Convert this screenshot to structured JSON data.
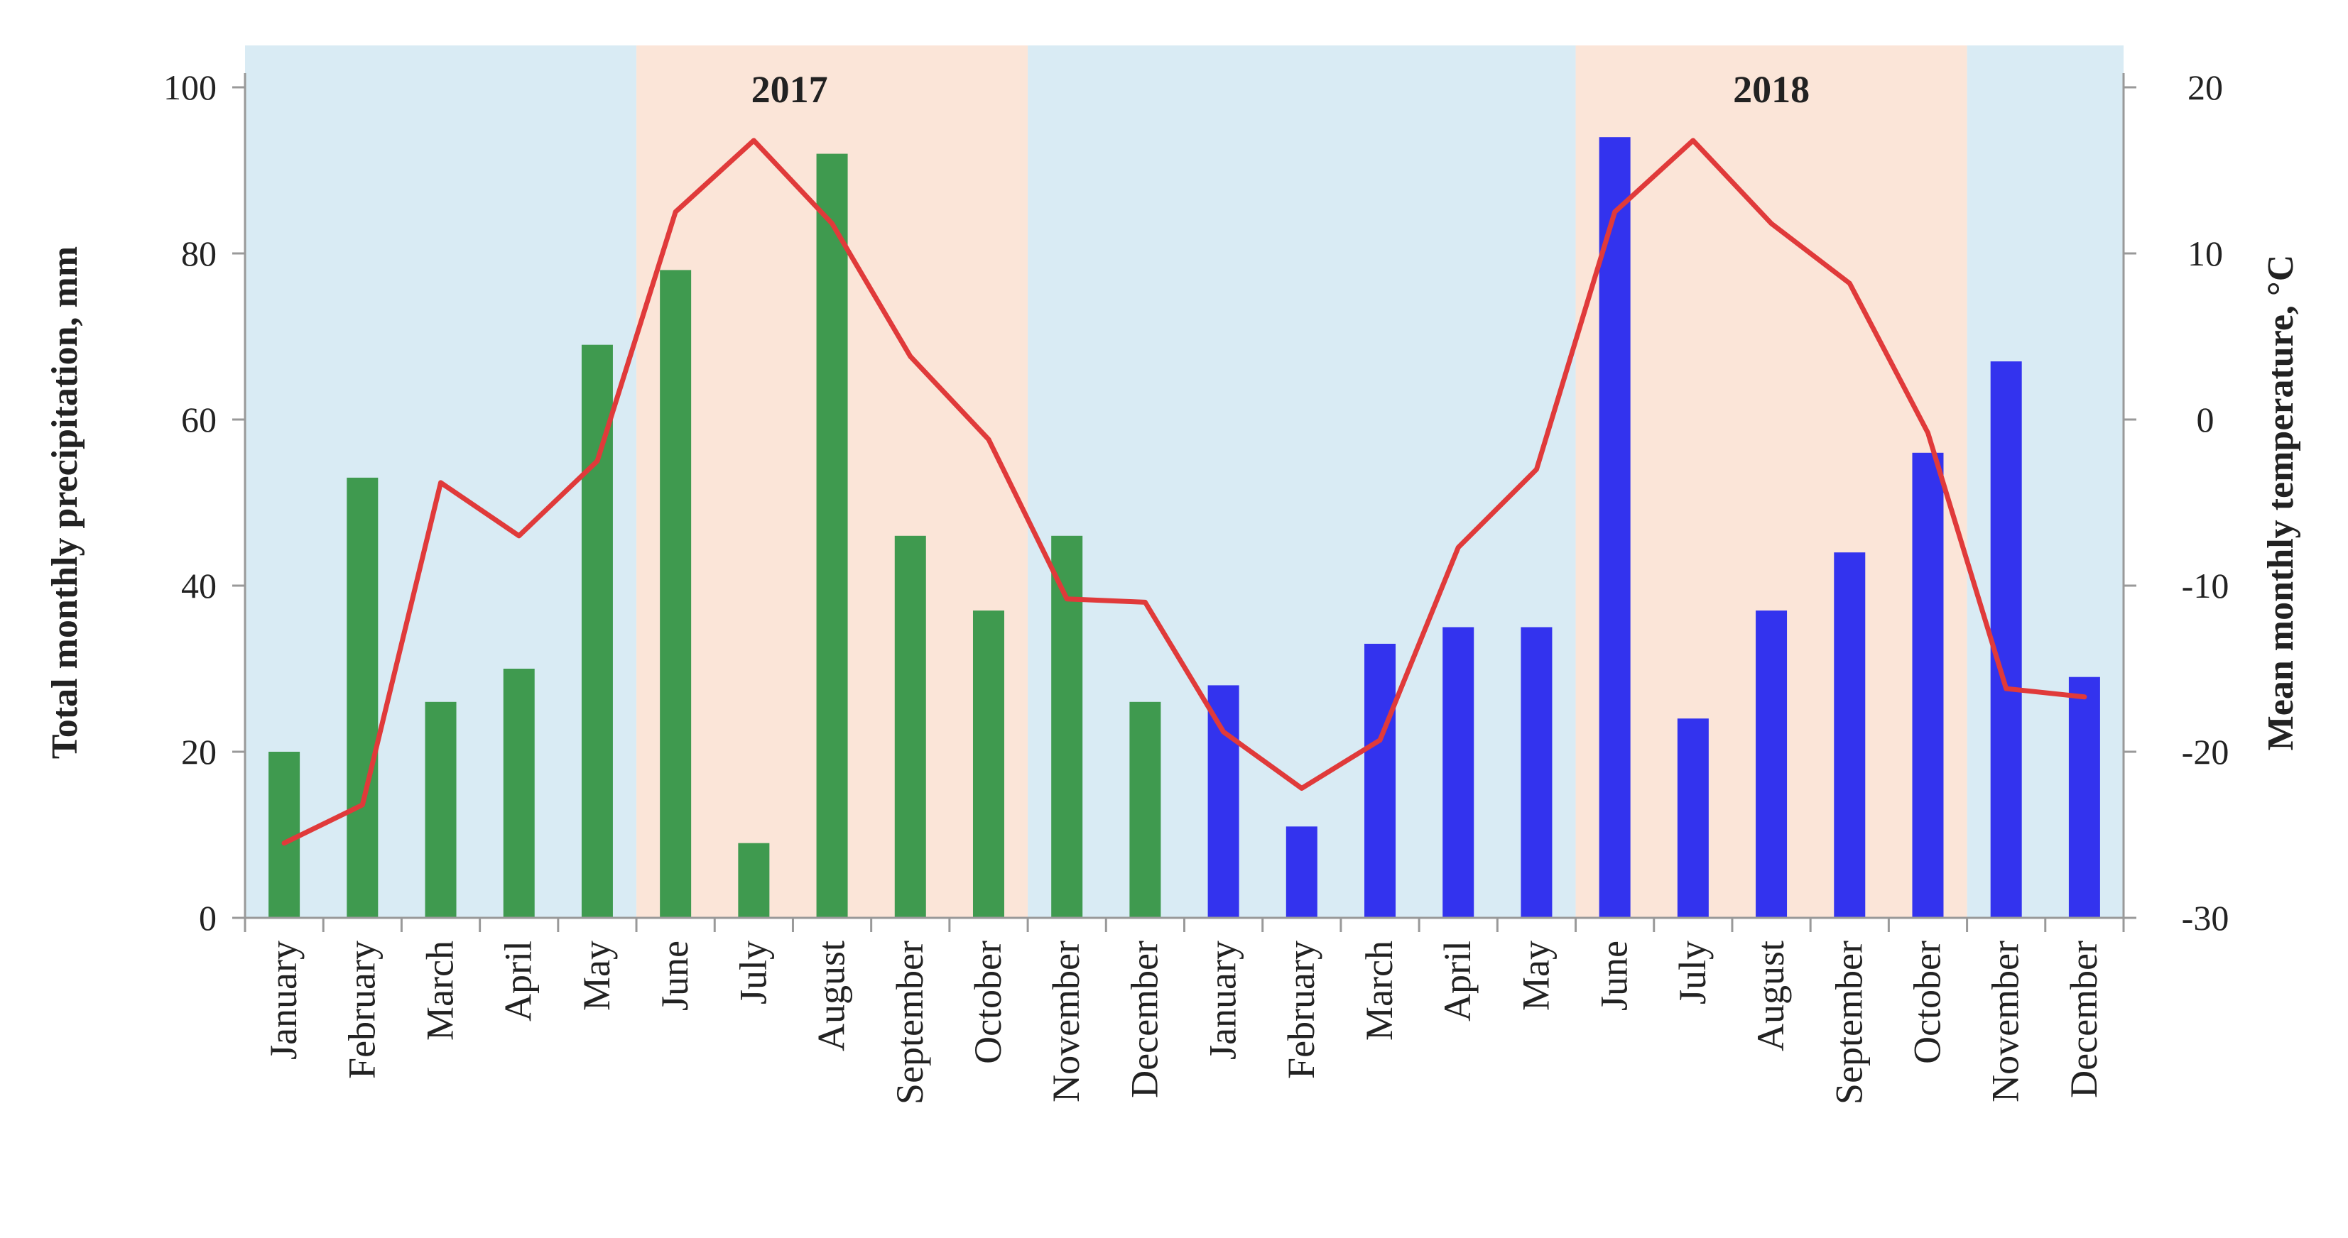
{
  "chart_data": {
    "type": "bar",
    "title": "",
    "categories": [
      "January",
      "February",
      "March",
      "April",
      "May",
      "June",
      "July",
      "August",
      "September",
      "October",
      "November",
      "December",
      "January",
      "February",
      "March",
      "April",
      "May",
      "June",
      "July",
      "August",
      "September",
      "October",
      "November",
      "December"
    ],
    "series": [
      {
        "name": "Total monthly precipitation, mm (2017)",
        "type": "bar",
        "axis": "left",
        "color": "#3f9a4f",
        "values": [
          20,
          53,
          26,
          30,
          69,
          78,
          9,
          92,
          46,
          37,
          46,
          26,
          null,
          null,
          null,
          null,
          null,
          null,
          null,
          null,
          null,
          null,
          null,
          null
        ]
      },
      {
        "name": "Total monthly precipitation, mm (2018)",
        "type": "bar",
        "axis": "left",
        "color": "#3333ee",
        "values": [
          null,
          null,
          null,
          null,
          null,
          null,
          null,
          null,
          null,
          null,
          null,
          null,
          28,
          11,
          33,
          35,
          35,
          94,
          24,
          37,
          44,
          56,
          67,
          29
        ]
      },
      {
        "name": "Mean monthly temperature, °C",
        "type": "line",
        "axis": "right",
        "color": "#e03a3a",
        "values": [
          -25.5,
          -23.2,
          -3.8,
          -7.0,
          -2.5,
          12.5,
          16.8,
          11.8,
          3.8,
          -1.2,
          -10.8,
          -11.0,
          -18.8,
          -22.2,
          -19.3,
          -7.7,
          -3.0,
          12.5,
          16.8,
          11.8,
          8.2,
          -0.8,
          -16.2,
          -16.7
        ]
      }
    ],
    "ylabel": "Total monthly precipitation, mm",
    "ylabel_right": "Mean monthly temperature, °C",
    "ylim": [
      0,
      100
    ],
    "y_ticks": [
      "0",
      "20",
      "40",
      "60",
      "80",
      "100"
    ],
    "ylim_right": [
      -30,
      20
    ],
    "y_ticks_right": [
      "-30",
      "-20",
      "-10",
      "0",
      "10",
      "20"
    ],
    "background_bands": [
      {
        "from_index": 0,
        "to_index": 5,
        "color": "#d9ebf4"
      },
      {
        "from_index": 5,
        "to_index": 10,
        "color": "#fbe5d8",
        "label": "2017"
      },
      {
        "from_index": 10,
        "to_index": 17,
        "color": "#d9ebf4"
      },
      {
        "from_index": 17,
        "to_index": 22,
        "color": "#fbe5d8",
        "label": "2018"
      },
      {
        "from_index": 22,
        "to_index": 24,
        "color": "#d9ebf4"
      }
    ],
    "grid": false
  }
}
